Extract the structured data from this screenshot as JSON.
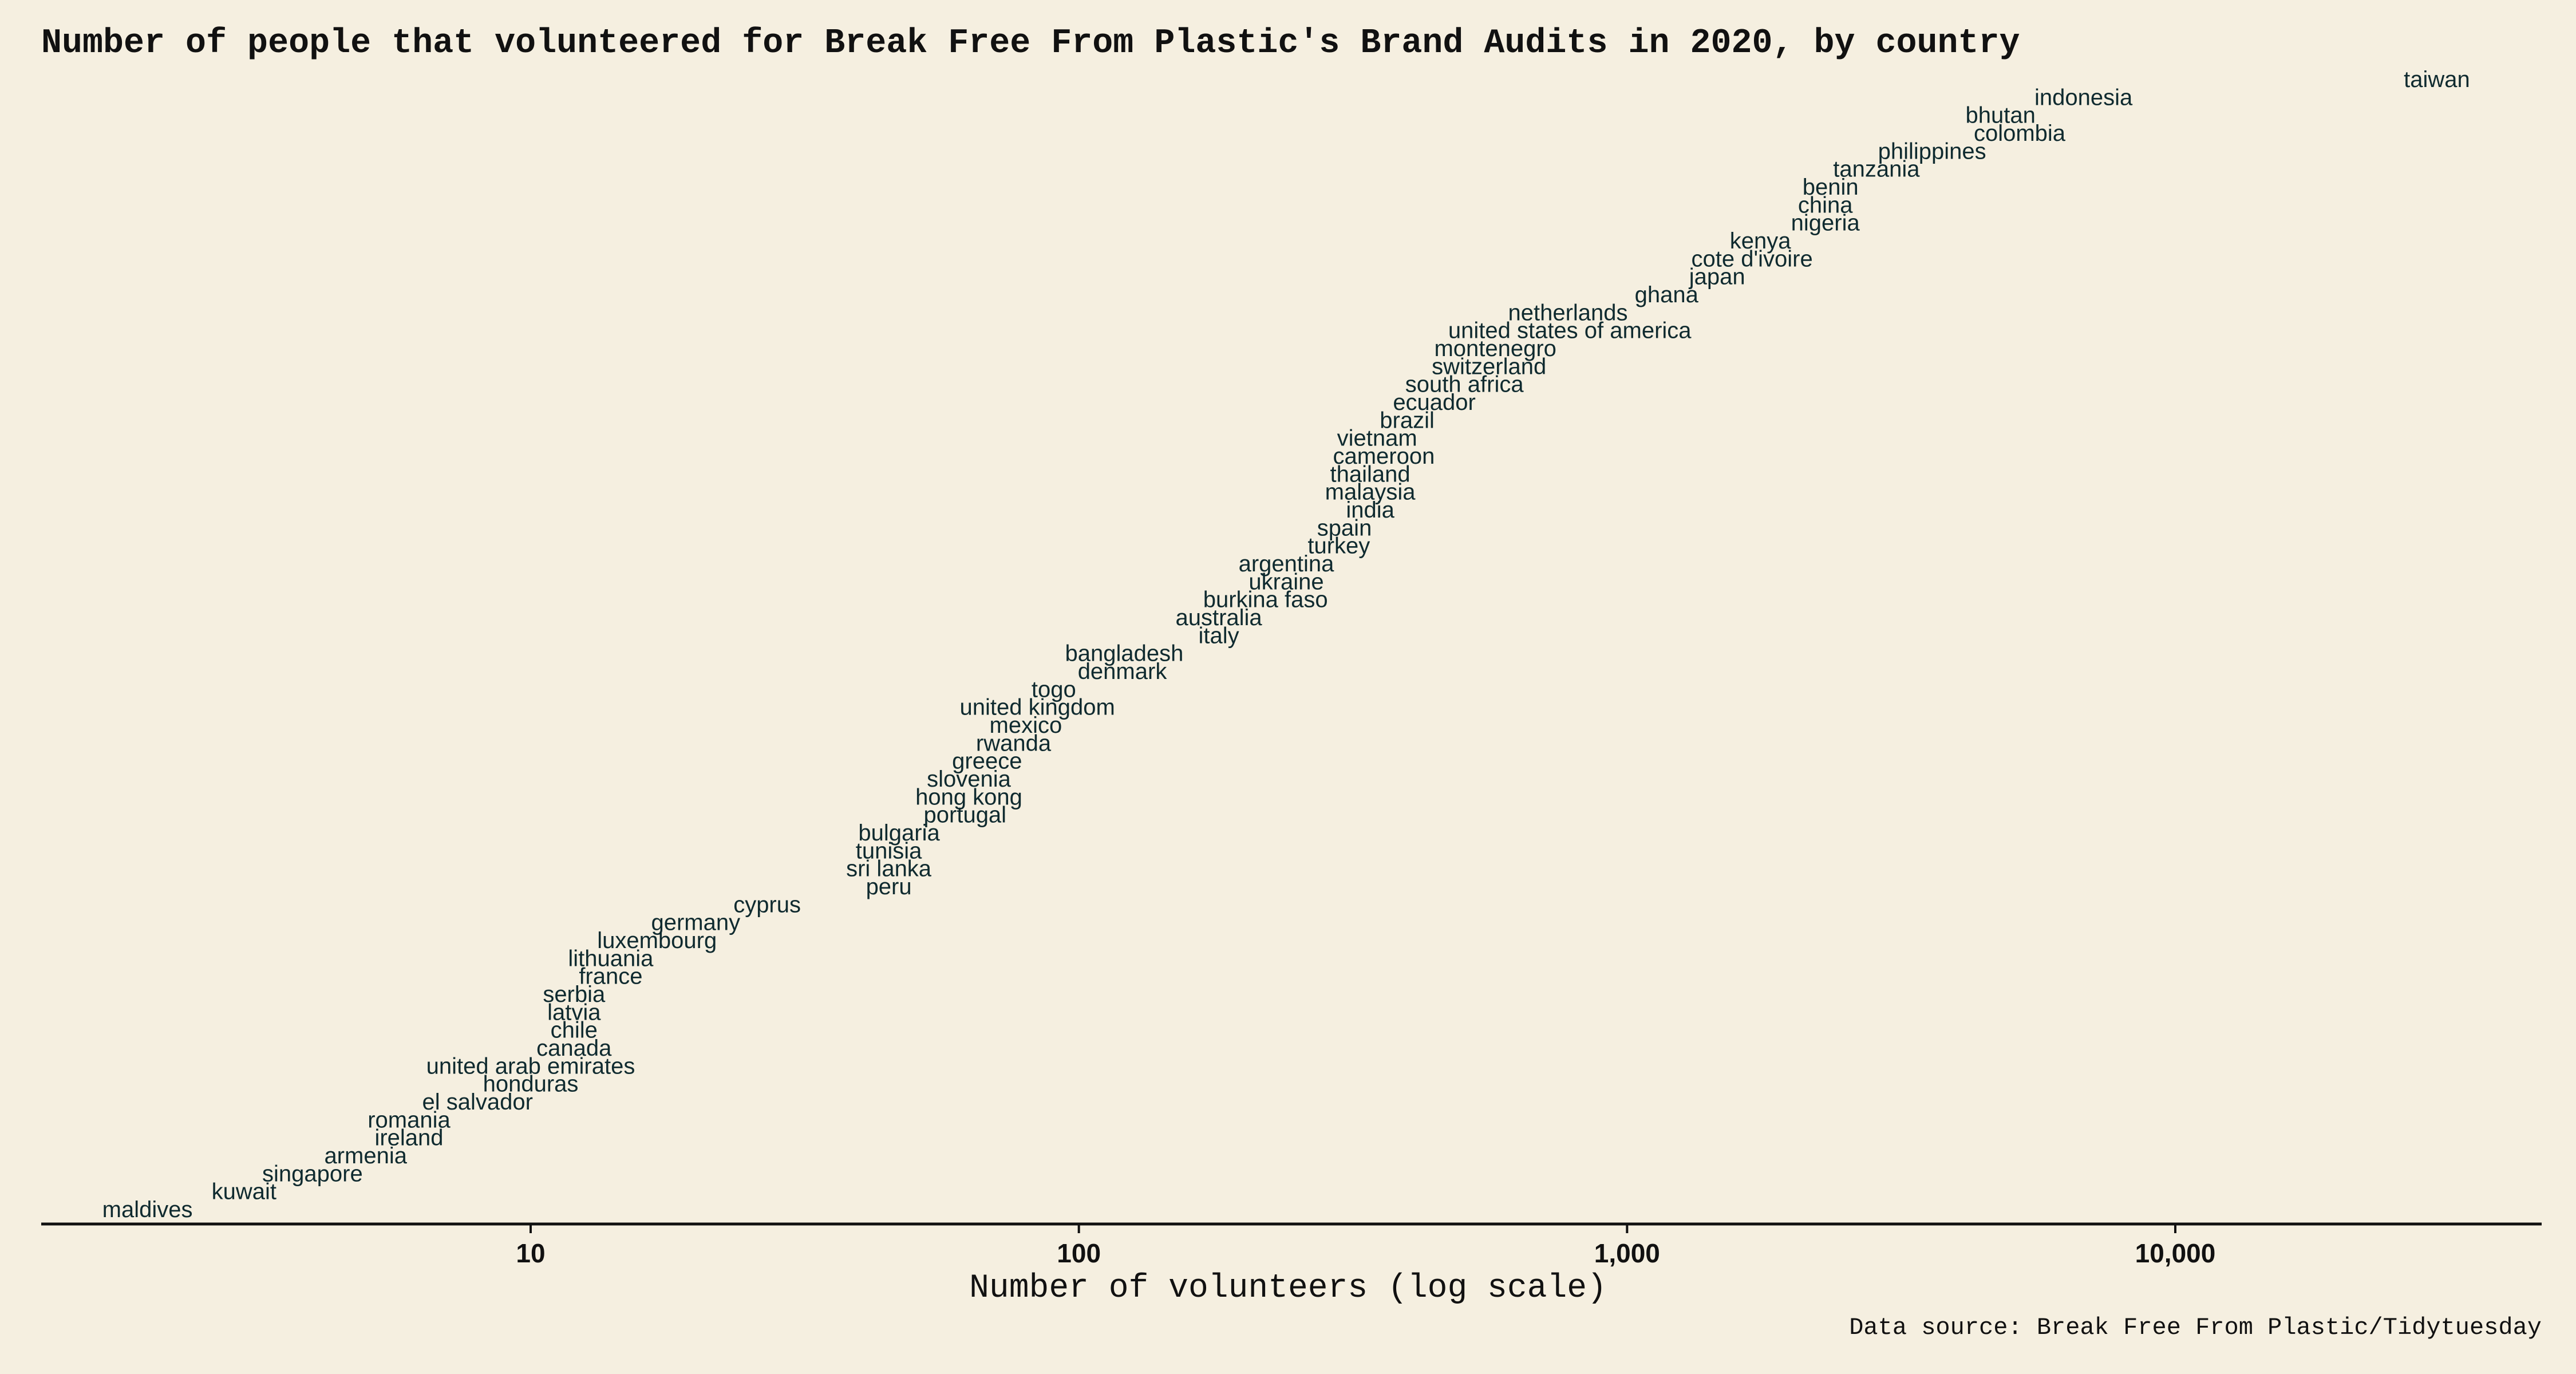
{
  "chart_data": {
    "type": "scatter",
    "title": "Number of people that volunteered for Break Free From Plastic's Brand Audits in 2020, by country",
    "xlabel": "Number of volunteers (log scale)",
    "ylabel": "",
    "xscale": "log",
    "xlim": [
      1.3,
      50000
    ],
    "xticks": [
      10,
      100,
      1000,
      10000
    ],
    "xtick_labels": [
      "10",
      "100",
      "1,000",
      "10,000"
    ],
    "caption": "Data source: Break Free From Plastic/Tidytuesday",
    "points": [
      {
        "label": "maldives",
        "x": 2
      },
      {
        "label": "kuwait",
        "x": 3
      },
      {
        "label": "singapore",
        "x": 4
      },
      {
        "label": "armenia",
        "x": 5
      },
      {
        "label": "ireland",
        "x": 6
      },
      {
        "label": "romania",
        "x": 6
      },
      {
        "label": "el salvador",
        "x": 8
      },
      {
        "label": "honduras",
        "x": 10
      },
      {
        "label": "united arab emirates",
        "x": 10
      },
      {
        "label": "canada",
        "x": 12
      },
      {
        "label": "chile",
        "x": 12
      },
      {
        "label": "latvia",
        "x": 12
      },
      {
        "label": "serbia",
        "x": 12
      },
      {
        "label": "france",
        "x": 14
      },
      {
        "label": "lithuania",
        "x": 14
      },
      {
        "label": "luxembourg",
        "x": 17
      },
      {
        "label": "germany",
        "x": 20
      },
      {
        "label": "cyprus",
        "x": 27
      },
      {
        "label": "peru",
        "x": 45
      },
      {
        "label": "sri lanka",
        "x": 45
      },
      {
        "label": "tunisia",
        "x": 45
      },
      {
        "label": "bulgaria",
        "x": 47
      },
      {
        "label": "portugal",
        "x": 62
      },
      {
        "label": "hong kong",
        "x": 63
      },
      {
        "label": "slovenia",
        "x": 63
      },
      {
        "label": "greece",
        "x": 68
      },
      {
        "label": "rwanda",
        "x": 76
      },
      {
        "label": "mexico",
        "x": 80
      },
      {
        "label": "united kingdom",
        "x": 84
      },
      {
        "label": "togo",
        "x": 90
      },
      {
        "label": "denmark",
        "x": 120
      },
      {
        "label": "bangladesh",
        "x": 121
      },
      {
        "label": "italy",
        "x": 180
      },
      {
        "label": "australia",
        "x": 180
      },
      {
        "label": "burkina faso",
        "x": 219
      },
      {
        "label": "ukraine",
        "x": 239
      },
      {
        "label": "argentina",
        "x": 239
      },
      {
        "label": "turkey",
        "x": 298
      },
      {
        "label": "spain",
        "x": 305
      },
      {
        "label": "india",
        "x": 340
      },
      {
        "label": "malaysia",
        "x": 340
      },
      {
        "label": "thailand",
        "x": 340
      },
      {
        "label": "cameroon",
        "x": 360
      },
      {
        "label": "vietnam",
        "x": 350
      },
      {
        "label": "brazil",
        "x": 397
      },
      {
        "label": "ecuador",
        "x": 445
      },
      {
        "label": "south africa",
        "x": 505
      },
      {
        "label": "switzerland",
        "x": 560
      },
      {
        "label": "montenegro",
        "x": 575
      },
      {
        "label": "united states of america",
        "x": 786
      },
      {
        "label": "netherlands",
        "x": 780
      },
      {
        "label": "ghana",
        "x": 1180
      },
      {
        "label": "japan",
        "x": 1460
      },
      {
        "label": "cote d'ivoire",
        "x": 1690
      },
      {
        "label": "kenya",
        "x": 1750
      },
      {
        "label": "nigeria",
        "x": 2300
      },
      {
        "label": "china",
        "x": 2300
      },
      {
        "label": "benin",
        "x": 2350
      },
      {
        "label": "tanzania",
        "x": 2850
      },
      {
        "label": "philippines",
        "x": 3600
      },
      {
        "label": "colombia",
        "x": 5200
      },
      {
        "label": "bhutan",
        "x": 4800
      },
      {
        "label": "indonesia",
        "x": 6800
      },
      {
        "label": "taiwan",
        "x": 30000
      }
    ]
  }
}
